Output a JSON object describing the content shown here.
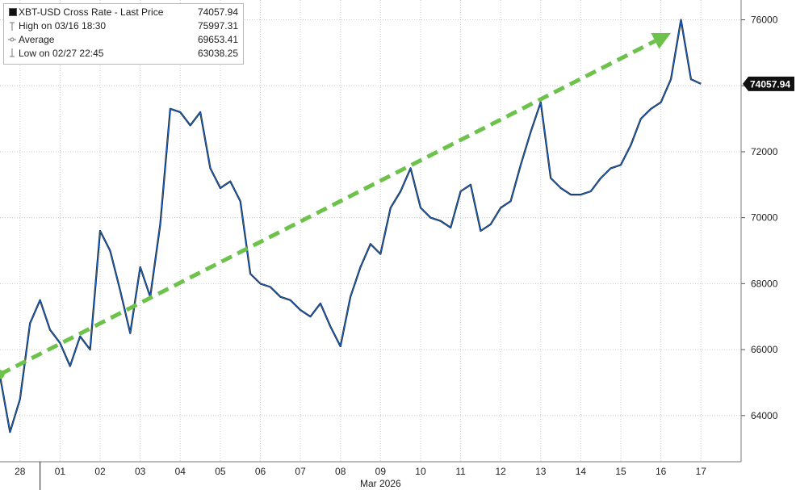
{
  "chart_data": {
    "type": "line",
    "title": "XBT-USD Cross Rate",
    "series": [
      {
        "name": "Last Price",
        "color": "#1a66c9",
        "x": [
          "02-28 00:00",
          "02-28 06:00",
          "02-28 12:00",
          "02-28 18:00",
          "03-01 00:00",
          "03-01 06:00",
          "03-01 12:00",
          "03-01 18:00",
          "03-02 00:00",
          "03-02 06:00",
          "03-02 12:00",
          "03-02 18:00",
          "03-03 00:00",
          "03-03 06:00",
          "03-03 12:00",
          "03-03 18:00",
          "03-04 00:00",
          "03-04 06:00",
          "03-04 12:00",
          "03-04 18:00",
          "03-05 00:00",
          "03-05 06:00",
          "03-05 12:00",
          "03-05 18:00",
          "03-06 00:00",
          "03-06 06:00",
          "03-06 12:00",
          "03-06 18:00",
          "03-07 00:00",
          "03-07 06:00",
          "03-07 12:00",
          "03-07 18:00",
          "03-08 00:00",
          "03-08 06:00",
          "03-08 12:00",
          "03-08 18:00",
          "03-09 00:00",
          "03-09 06:00",
          "03-09 12:00",
          "03-09 18:00",
          "03-10 00:00",
          "03-10 06:00",
          "03-10 12:00",
          "03-10 18:00",
          "03-11 00:00",
          "03-11 06:00",
          "03-11 12:00",
          "03-11 18:00",
          "03-12 00:00",
          "03-12 06:00",
          "03-12 12:00",
          "03-12 18:00",
          "03-13 00:00",
          "03-13 06:00",
          "03-13 12:00",
          "03-13 18:00",
          "03-14 00:00",
          "03-14 06:00",
          "03-14 12:00",
          "03-14 18:00",
          "03-15 00:00",
          "03-15 06:00",
          "03-15 12:00",
          "03-15 18:00",
          "03-16 00:00",
          "03-16 06:00",
          "03-16 12:00",
          "03-16 18:00",
          "03-17 00:00",
          "03-17 06:00",
          "03-17 12:00"
        ],
        "values": [
          65200,
          63500,
          64500,
          66800,
          67500,
          66600,
          66200,
          65500,
          66400,
          66000,
          69600,
          69000,
          67800,
          66500,
          68500,
          67600,
          69800,
          73300,
          73200,
          72800,
          73200,
          71500,
          70900,
          71100,
          70500,
          68300,
          68000,
          67900,
          67600,
          67500,
          67200,
          67000,
          67400,
          66700,
          66100,
          67600,
          68500,
          69200,
          68900,
          70300,
          70800,
          71500,
          70300,
          70000,
          69900,
          69700,
          70800,
          71000,
          69600,
          69800,
          70300,
          70500,
          71600,
          72600,
          73500,
          71200,
          70900,
          70700,
          70700,
          70800,
          71200,
          71500,
          71600,
          72200,
          73000,
          73300,
          73500,
          74200,
          75997,
          74200,
          74057.94
        ]
      }
    ],
    "ylim": [
      62600,
      76600
    ],
    "yticks": [
      64000,
      66000,
      68000,
      70000,
      72000,
      74000,
      76000
    ],
    "grid": true,
    "legend_position": "top-left",
    "last_label": "74057.94",
    "xtick_labels": [
      "28",
      "01",
      "02",
      "03",
      "04",
      "05",
      "06",
      "07",
      "08",
      "09",
      "10",
      "11",
      "12",
      "13",
      "14",
      "15",
      "16",
      "17"
    ],
    "xlabel": "Mar 2026",
    "legend": {
      "title": "XBT-USD Cross Rate - Last Price",
      "last_value": "74057.94",
      "rows": [
        {
          "label": "High on 03/16 18:30",
          "value": "75997.31"
        },
        {
          "label": "Average",
          "value": "69653.41"
        },
        {
          "label": "Low on 02/27 22:45",
          "value": "63038.25"
        }
      ]
    },
    "trend_arrow": {
      "color": "#6cc24a",
      "from": {
        "x": "02-28 00:00",
        "y": 65250
      },
      "to": {
        "x": "03-16 18:00",
        "y": 75600
      }
    }
  }
}
